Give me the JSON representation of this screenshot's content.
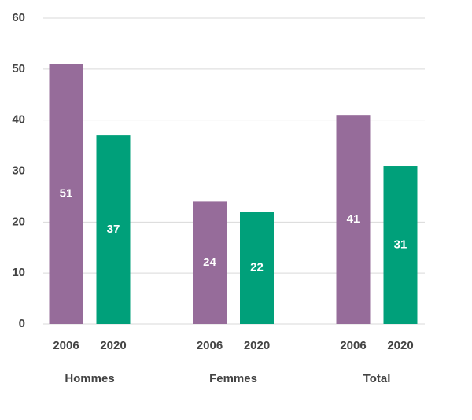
{
  "chart_data": {
    "type": "bar",
    "categories": [
      "Hommes",
      "Femmes",
      "Total"
    ],
    "series": [
      {
        "name": "2006",
        "color": "#966c9a",
        "values": [
          51,
          24,
          41
        ]
      },
      {
        "name": "2020",
        "color": "#00a07a",
        "values": [
          37,
          22,
          31
        ]
      }
    ],
    "ylim": [
      0,
      60
    ],
    "yticks": [
      0,
      10,
      20,
      30,
      40,
      50,
      60
    ],
    "grid": true
  }
}
